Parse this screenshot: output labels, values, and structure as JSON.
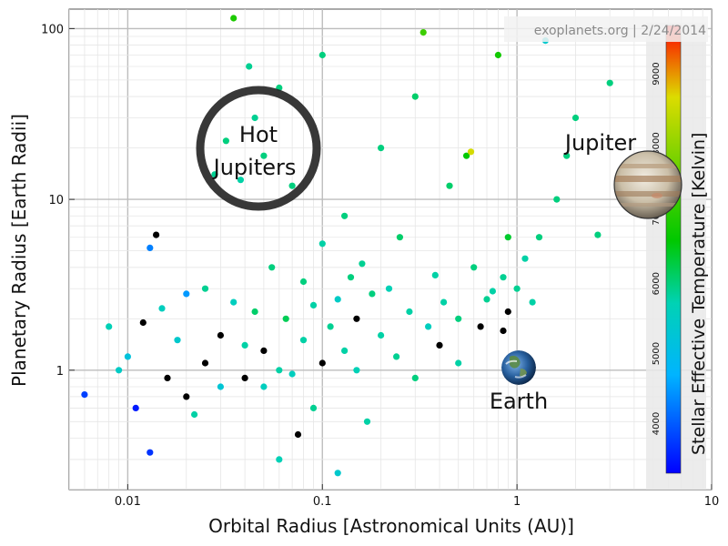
{
  "chart_data": {
    "type": "scatter",
    "title": "",
    "source_credit": "exoplanets.org | 2/24/2014",
    "xlabel": "Orbital Radius [Astronomical Units (AU)]",
    "ylabel": "Planetary Radius [Earth Radii]",
    "xscale": "log",
    "yscale": "log",
    "xlim": [
      0.005,
      10
    ],
    "ylim": [
      0.2,
      130
    ],
    "x_ticks": [
      0.01,
      0.1,
      1,
      10
    ],
    "x_tick_labels": [
      "0.01",
      "0.1",
      "1",
      "10"
    ],
    "y_ticks": [
      1,
      10,
      100
    ],
    "y_tick_labels": [
      "1",
      "10",
      "100"
    ],
    "grid": true,
    "colorbar": {
      "label": "Stellar Effective Temperature [Kelvin]",
      "range": [
        3300,
        9700
      ],
      "ticks": [
        4000,
        5000,
        6000,
        7000,
        8000,
        9000
      ],
      "tick_labels": [
        "4000",
        "5000",
        "6000",
        "7000",
        "8000",
        "9000"
      ],
      "colors": [
        "#0000ff",
        "#00c8ff",
        "#00c800",
        "#dcdc00",
        "#ff0000"
      ],
      "no_data_color": "#000000"
    },
    "annotations": {
      "hot_jupiters": {
        "line1": "Hot",
        "line2": "Jupiters",
        "x": 0.045,
        "y": 22
      },
      "jupiter": {
        "label": "Jupiter",
        "x": 5.2,
        "y": 11.2
      },
      "earth": {
        "label": "Earth",
        "x": 1.0,
        "y": 1.0
      }
    },
    "series_note": "Approximately 3,500 planets; values estimated from the plot, listed as [orbital_radius_AU, radius_earth, stellar_temp_K]; temp 0 = no data (black)",
    "points": [
      [
        0.006,
        0.72,
        3800
      ],
      [
        0.008,
        1.8,
        5700
      ],
      [
        0.009,
        1.0,
        5500
      ],
      [
        0.01,
        1.2,
        5200
      ],
      [
        0.011,
        0.6,
        3500
      ],
      [
        0.012,
        1.9,
        0
      ],
      [
        0.013,
        0.33,
        3700
      ],
      [
        0.013,
        5.2,
        4300
      ],
      [
        0.014,
        6.2,
        0
      ],
      [
        0.015,
        2.3,
        5600
      ],
      [
        0.016,
        0.9,
        0
      ],
      [
        0.018,
        1.5,
        5400
      ],
      [
        0.02,
        0.7,
        0
      ],
      [
        0.02,
        2.8,
        4500
      ],
      [
        0.022,
        0.55,
        5800
      ],
      [
        0.025,
        1.1,
        0
      ],
      [
        0.025,
        3.0,
        5900
      ],
      [
        0.028,
        14,
        5900
      ],
      [
        0.03,
        1.6,
        0
      ],
      [
        0.03,
        0.8,
        5300
      ],
      [
        0.032,
        22,
        6000
      ],
      [
        0.035,
        115,
        6900
      ],
      [
        0.035,
        2.5,
        5600
      ],
      [
        0.038,
        13,
        5800
      ],
      [
        0.04,
        0.9,
        0
      ],
      [
        0.04,
        1.4,
        5800
      ],
      [
        0.042,
        60,
        5900
      ],
      [
        0.045,
        30,
        5900
      ],
      [
        0.045,
        2.2,
        6100
      ],
      [
        0.05,
        0.8,
        5600
      ],
      [
        0.05,
        1.3,
        0
      ],
      [
        0.05,
        18,
        6000
      ],
      [
        0.055,
        4.0,
        6000
      ],
      [
        0.06,
        0.3,
        5700
      ],
      [
        0.06,
        1.0,
        5800
      ],
      [
        0.06,
        45,
        6000
      ],
      [
        0.065,
        2.0,
        6200
      ],
      [
        0.07,
        0.95,
        5600
      ],
      [
        0.07,
        12,
        6000
      ],
      [
        0.075,
        0.42,
        0
      ],
      [
        0.08,
        1.5,
        5800
      ],
      [
        0.08,
        3.3,
        6000
      ],
      [
        0.09,
        0.6,
        5900
      ],
      [
        0.09,
        2.4,
        5800
      ],
      [
        0.1,
        1.1,
        0
      ],
      [
        0.1,
        5.5,
        5800
      ],
      [
        0.1,
        70,
        6000
      ],
      [
        0.11,
        1.8,
        5900
      ],
      [
        0.12,
        2.6,
        5500
      ],
      [
        0.12,
        0.25,
        5400
      ],
      [
        0.13,
        1.3,
        5800
      ],
      [
        0.13,
        8,
        6000
      ],
      [
        0.14,
        3.5,
        6000
      ],
      [
        0.15,
        1.0,
        5700
      ],
      [
        0.15,
        2.0,
        0
      ],
      [
        0.16,
        4.2,
        5900
      ],
      [
        0.17,
        0.5,
        5800
      ],
      [
        0.18,
        2.8,
        6000
      ],
      [
        0.2,
        1.6,
        5800
      ],
      [
        0.2,
        20,
        6000
      ],
      [
        0.22,
        3.0,
        5700
      ],
      [
        0.24,
        1.2,
        5900
      ],
      [
        0.25,
        6,
        6100
      ],
      [
        0.28,
        2.2,
        5800
      ],
      [
        0.3,
        0.9,
        6000
      ],
      [
        0.3,
        40,
        6100
      ],
      [
        0.33,
        95,
        7200
      ],
      [
        0.35,
        1.8,
        5600
      ],
      [
        0.38,
        3.6,
        5800
      ],
      [
        0.4,
        1.4,
        0
      ],
      [
        0.42,
        2.5,
        5800
      ],
      [
        0.45,
        12,
        6100
      ],
      [
        0.5,
        1.1,
        5800
      ],
      [
        0.5,
        2.0,
        6000
      ],
      [
        0.55,
        18,
        6600
      ],
      [
        0.58,
        19,
        8600
      ],
      [
        0.6,
        4,
        6000
      ],
      [
        0.65,
        1.8,
        0
      ],
      [
        0.7,
        2.6,
        5900
      ],
      [
        0.75,
        2.9,
        5800
      ],
      [
        0.8,
        70,
        6800
      ],
      [
        0.85,
        1.7,
        0
      ],
      [
        0.85,
        3.5,
        5900
      ],
      [
        0.9,
        6,
        6400
      ],
      [
        0.9,
        2.2,
        0
      ],
      [
        1.0,
        3.0,
        5900
      ],
      [
        1.1,
        4.5,
        5800
      ],
      [
        1.2,
        2.5,
        5800
      ],
      [
        1.3,
        6,
        6000
      ],
      [
        1.4,
        85,
        5400
      ],
      [
        1.6,
        10,
        6000
      ],
      [
        1.8,
        18,
        6000
      ],
      [
        2.0,
        30,
        6000
      ],
      [
        2.6,
        6.2,
        6000
      ],
      [
        3.0,
        48,
        6000
      ]
    ]
  }
}
